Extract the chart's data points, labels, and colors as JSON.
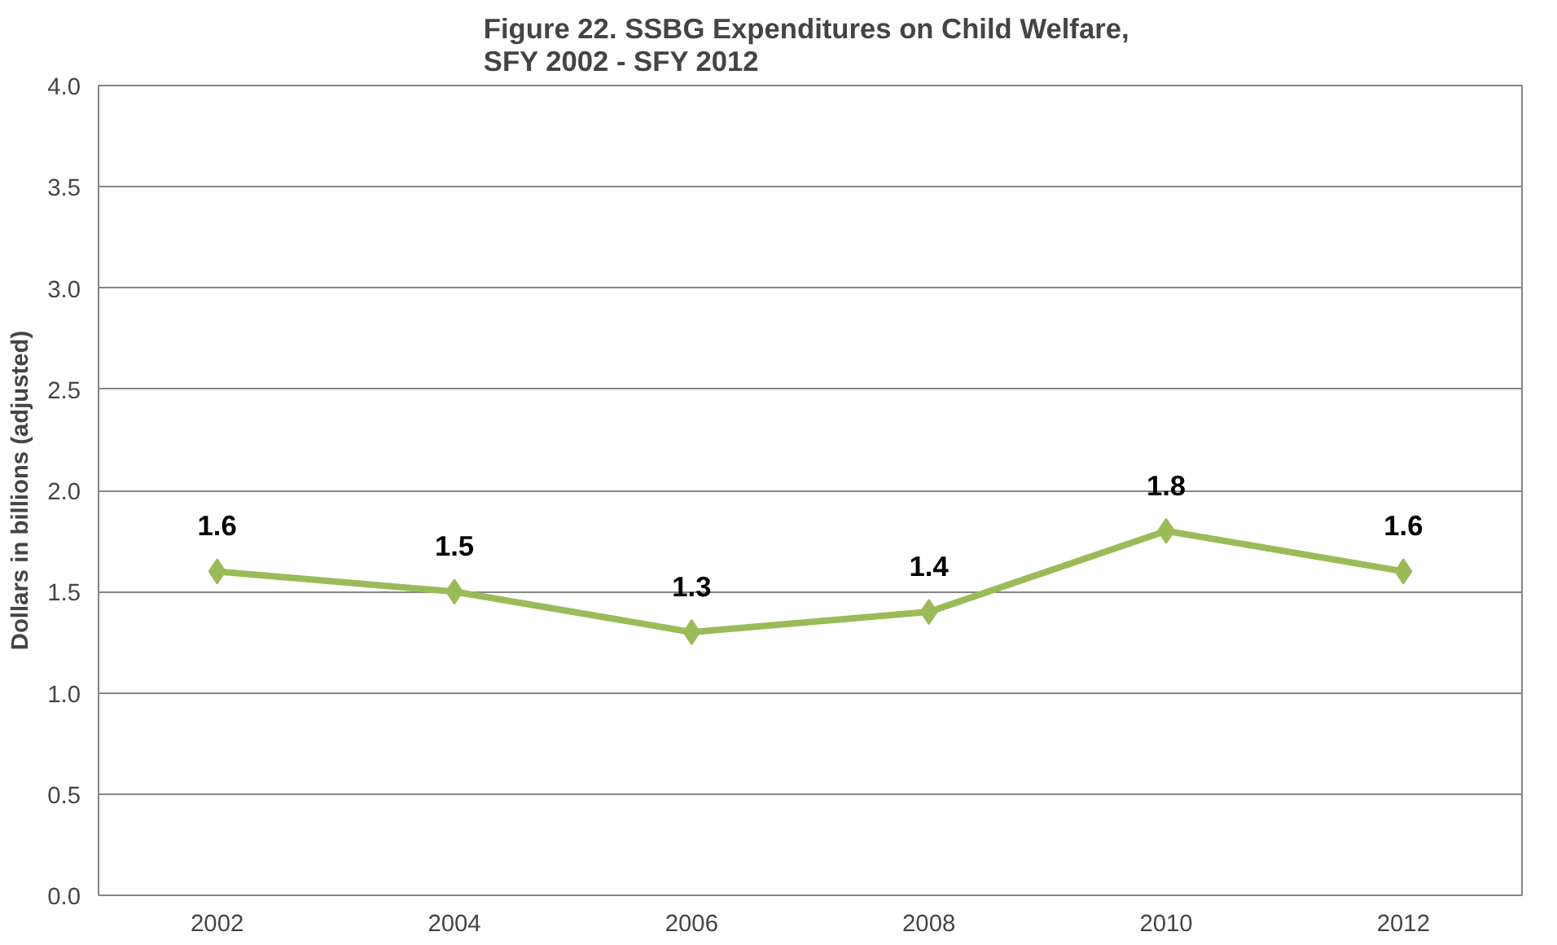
{
  "chart_data": {
    "type": "line",
    "title": "Figure 22.  SSBG Expenditures on Child Welfare,\nSFY 2002 - SFY 2012",
    "ylabel": "Dollars in billions (adjusted)",
    "categories": [
      "2002",
      "2004",
      "2006",
      "2008",
      "2010",
      "2012"
    ],
    "series": [
      {
        "color": "#9bbb59",
        "values": [
          1.6,
          1.5,
          1.3,
          1.4,
          1.8,
          1.6
        ]
      }
    ],
    "ylim": [
      0,
      4
    ],
    "yticks": [
      {
        "value": 0,
        "label": "0.0"
      },
      {
        "value": 0.5,
        "label": "0.5"
      },
      {
        "value": 1,
        "label": "1.0"
      },
      {
        "value": 1.5,
        "label": "1.5"
      },
      {
        "value": 2,
        "label": "2.0"
      },
      {
        "value": 2.5,
        "label": "2.5"
      },
      {
        "value": 3,
        "label": "3.0"
      },
      {
        "value": 3.5,
        "label": "3.5"
      },
      {
        "value": 4,
        "label": "4.0"
      }
    ],
    "grid": "y",
    "marker": "diamond",
    "line_style": "solid",
    "data_labels": true
  }
}
